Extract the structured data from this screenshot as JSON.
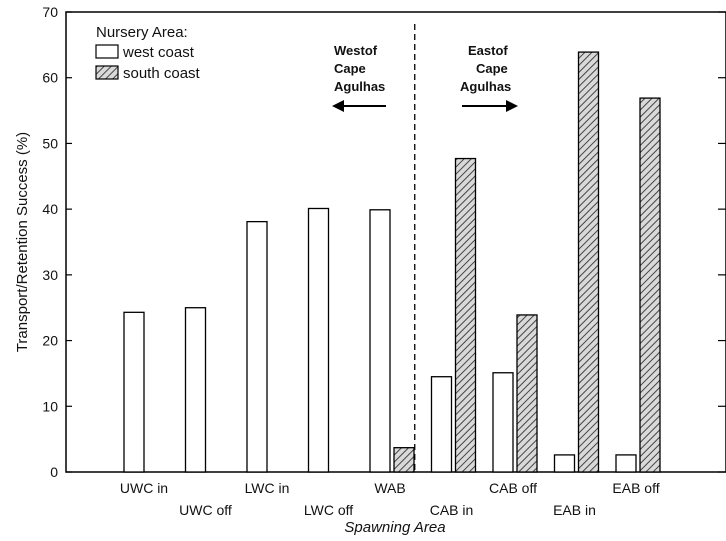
{
  "chart_data": {
    "type": "bar",
    "categories": [
      "UWC in",
      "UWC off",
      "LWC in",
      "LWC off",
      "WAB",
      "CAB in",
      "CAB off",
      "EAB in",
      "EAB off"
    ],
    "series": [
      {
        "name": "west coast",
        "values": [
          24.3,
          25.0,
          38.1,
          40.1,
          39.9,
          14.5,
          15.1,
          2.6,
          2.6
        ],
        "pattern": "white"
      },
      {
        "name": "south coast",
        "values": [
          null,
          null,
          null,
          null,
          3.7,
          47.7,
          23.9,
          63.9,
          56.9
        ],
        "pattern": "hatched"
      }
    ],
    "ylabel": "Transport/Retention Success (%)",
    "xlabel": "Spawning Area",
    "ylim": [
      0,
      70
    ],
    "yticks": [
      0,
      10,
      20,
      30,
      40,
      50,
      60,
      70
    ],
    "legend": {
      "title": "Nursery Area:",
      "placement": "top-left"
    },
    "annotations": {
      "west": [
        "Westof",
        "Cape",
        "Agulhas"
      ],
      "east": [
        "Eastof",
        "Cape",
        "Agulhas"
      ]
    },
    "divider_between": [
      "WAB",
      "CAB in"
    ],
    "grid": false,
    "colors": {
      "bar_edge": "#000000",
      "west_fill": "#ffffff",
      "hatch": "#444444",
      "hatch_bg": "#d9d9d9"
    }
  }
}
